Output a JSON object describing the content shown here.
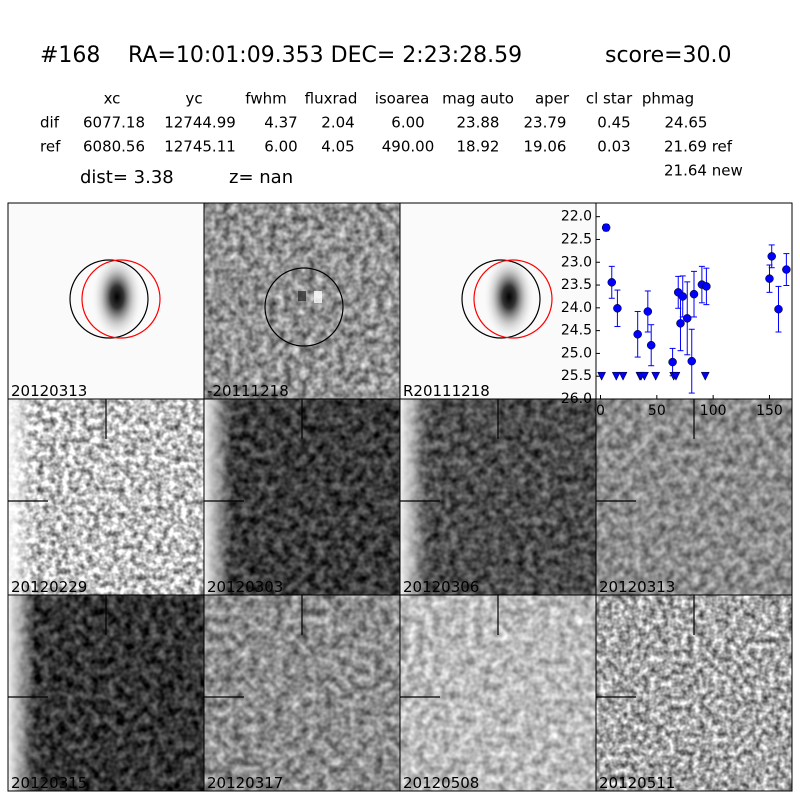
{
  "header": {
    "id": "#168",
    "coords": "RA=10:01:09.353 DEC= 2:23:28.59",
    "score": "score=30.0"
  },
  "table": {
    "columns": [
      "xc",
      "yc",
      "fwhm",
      "fluxrad",
      "isoarea",
      "mag auto",
      "aper",
      "cl star",
      "phmag"
    ],
    "rows": [
      {
        "label": "dif",
        "cells": [
          "6077.18",
          "12744.99",
          "4.37",
          "2.04",
          "6.00",
          "23.88",
          "23.79",
          "0.45",
          "24.65"
        ]
      },
      {
        "label": "ref",
        "cells": [
          "6080.56",
          "12745.11",
          "6.00",
          "4.05",
          "490.00",
          "18.92",
          "19.06",
          "0.03",
          "21.69 ref"
        ]
      }
    ],
    "note": "21.64 new"
  },
  "summary": {
    "dist": "dist=  3.38",
    "z": "z=   nan"
  },
  "panels": [
    {
      "label": "20120313"
    },
    {
      "label": "-20111218"
    },
    {
      "label": "R20111218"
    },
    {
      "label": "20120229"
    },
    {
      "label": "20120303"
    },
    {
      "label": "20120306"
    },
    {
      "label": "20120313",
      "color": "#ff0000"
    },
    {
      "label": "20120315"
    },
    {
      "label": "20120317"
    },
    {
      "label": "20120508"
    },
    {
      "label": "20120511"
    }
  ],
  "chart_data": {
    "type": "scatter",
    "xlim": [
      -4,
      170
    ],
    "ylim": [
      21.7,
      26.0
    ],
    "inverted_y": true,
    "xticks": [
      0,
      50,
      100,
      150
    ],
    "yticks": [
      {
        "value": 22,
        "label": "22.0"
      },
      {
        "value": 22.5,
        "label": "22.5"
      },
      {
        "value": 23,
        "label": "23.0"
      },
      {
        "value": 23.5,
        "label": "23.5"
      },
      {
        "value": 24,
        "label": "24.0"
      },
      {
        "value": 24.5,
        "label": "24.5"
      },
      {
        "value": 25,
        "label": "25.0"
      },
      {
        "value": 25.5,
        "label": "25.5"
      },
      {
        "value": 26,
        "label": "26.0"
      }
    ],
    "series": [
      {
        "color": "#0000ff",
        "marker": "circle",
        "x": [
          5,
          10,
          15,
          33,
          42,
          45,
          64,
          69,
          71,
          73,
          77,
          81,
          83,
          90,
          94,
          150,
          152,
          158,
          165
        ],
        "values": [
          22.24,
          23.44,
          24.01,
          24.58,
          24.08,
          24.82,
          25.19,
          23.66,
          24.34,
          23.75,
          24.23,
          25.17,
          23.7,
          23.49,
          23.53,
          23.36,
          22.87,
          24.03,
          23.16
        ],
        "errors": [
          0.07,
          0.35,
          0.4,
          0.5,
          0.45,
          0.45,
          0.3,
          0.35,
          0.6,
          0.45,
          0.8,
          0.7,
          0.5,
          0.4,
          0.4,
          0.3,
          0.25,
          0.5,
          0.35
        ]
      },
      {
        "color": "#0000ff",
        "marker": "triangle-down",
        "x": [
          1,
          14,
          20,
          35,
          36,
          39,
          49,
          65,
          67,
          93
        ],
        "values": [
          25.5,
          25.5,
          25.5,
          25.5,
          25.5,
          25.5,
          25.5,
          25.5,
          25.5,
          25.5
        ]
      }
    ]
  }
}
